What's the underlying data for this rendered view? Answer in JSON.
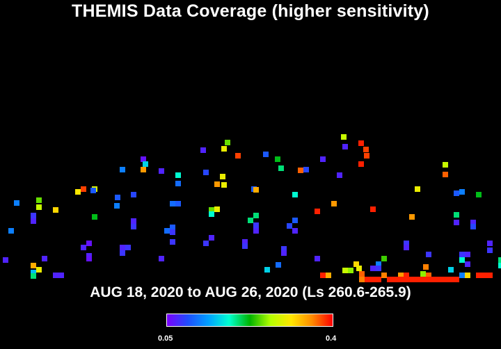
{
  "chart_data": {
    "type": "heatmap",
    "title": "THEMIS Data Coverage (higher sensitivity)",
    "subtitle": "AUG 18, 2020 to AUG 26, 2020 (Ls 260.6-265.9)",
    "colorbar": {
      "min_label": "0.05",
      "max_label": "0.4",
      "min": 0.05,
      "max": 0.4,
      "colors": [
        "#7a00ff",
        "#1f4dff",
        "#00a0ff",
        "#00ffd0",
        "#00b400",
        "#b4ff00",
        "#ffe600",
        "#ff8c00",
        "#ff0000"
      ]
    },
    "cells": [
      [
        202,
        225,
        0.06
      ],
      [
        288,
        212,
        0.07
      ],
      [
        323,
        201,
        0.25
      ],
      [
        318,
        210,
        0.3
      ],
      [
        338,
        220,
        0.38
      ],
      [
        378,
        218,
        0.1
      ],
      [
        395,
        225,
        0.22
      ],
      [
        400,
        238,
        0.2
      ],
      [
        460,
        225,
        0.07
      ],
      [
        490,
        193,
        0.28
      ],
      [
        492,
        207,
        0.07
      ],
      [
        515,
        202,
        0.39
      ],
      [
        522,
        211,
        0.38
      ],
      [
        523,
        220,
        0.38
      ],
      [
        515,
        232,
        0.39
      ],
      [
        172,
        240,
        0.12
      ],
      [
        202,
        240,
        0.35
      ],
      [
        205,
        232,
        0.16
      ],
      [
        228,
        242,
        0.07
      ],
      [
        252,
        248,
        0.18
      ],
      [
        292,
        244,
        0.09
      ],
      [
        316,
        250,
        0.3
      ],
      [
        308,
        261,
        0.35
      ],
      [
        318,
        262,
        0.3
      ],
      [
        428,
        241,
        0.37
      ],
      [
        436,
        240,
        0.09
      ],
      [
        484,
        248,
        0.07
      ],
      [
        636,
        233,
        0.28
      ],
      [
        636,
        247,
        0.37
      ],
      [
        108,
        272,
        0.31
      ],
      [
        116,
        268,
        0.38
      ],
      [
        132,
        268,
        0.29
      ],
      [
        130,
        270,
        0.1
      ],
      [
        165,
        280,
        0.1
      ],
      [
        188,
        276,
        0.09
      ],
      [
        252,
        260,
        0.11
      ],
      [
        361,
        268,
        0.1
      ],
      [
        364,
        269,
        0.34
      ],
      [
        420,
        276,
        0.18
      ],
      [
        476,
        289,
        0.35
      ],
      [
        596,
        268,
        0.3
      ],
      [
        652,
        274,
        0.1
      ],
      [
        660,
        272,
        0.12
      ],
      [
        684,
        276,
        0.22
      ],
      [
        20,
        288,
        0.12
      ],
      [
        52,
        284,
        0.25
      ],
      [
        52,
        294,
        0.28
      ],
      [
        76,
        298,
        0.32
      ],
      [
        164,
        292,
        0.12
      ],
      [
        244,
        289,
        0.11
      ],
      [
        252,
        289,
        0.1
      ],
      [
        300,
        298,
        0.25
      ],
      [
        308,
        297,
        0.3
      ],
      [
        300,
        304,
        0.18
      ],
      [
        452,
        300,
        0.39
      ],
      [
        532,
        297,
        0.39
      ],
      [
        44,
        306,
        0.08
      ],
      [
        44,
        314,
        0.07
      ],
      [
        132,
        308,
        0.22
      ],
      [
        188,
        314,
        0.07
      ],
      [
        188,
        322,
        0.08
      ],
      [
        244,
        323,
        0.1
      ],
      [
        244,
        330,
        0.08
      ],
      [
        236,
        328,
        0.11
      ],
      [
        356,
        313,
        0.2
      ],
      [
        364,
        306,
        0.2
      ],
      [
        364,
        320,
        0.08
      ],
      [
        364,
        328,
        0.07
      ],
      [
        412,
        321,
        0.09
      ],
      [
        420,
        313,
        0.1
      ],
      [
        420,
        328,
        0.07
      ],
      [
        588,
        308,
        0.35
      ],
      [
        652,
        305,
        0.2
      ],
      [
        652,
        316,
        0.07
      ],
      [
        676,
        316,
        0.07
      ],
      [
        676,
        322,
        0.09
      ],
      [
        12,
        328,
        0.12
      ],
      [
        124,
        346,
        0.06
      ],
      [
        116,
        352,
        0.07
      ],
      [
        172,
        352,
        0.07
      ],
      [
        180,
        352,
        0.08
      ],
      [
        172,
        360,
        0.08
      ],
      [
        124,
        364,
        0.07
      ],
      [
        124,
        368,
        0.06
      ],
      [
        244,
        344,
        0.08
      ],
      [
        292,
        346,
        0.08
      ],
      [
        300,
        338,
        0.07
      ],
      [
        348,
        344,
        0.07
      ],
      [
        348,
        350,
        0.08
      ],
      [
        404,
        354,
        0.08
      ],
      [
        404,
        360,
        0.07
      ],
      [
        452,
        368,
        0.07
      ],
      [
        580,
        346,
        0.08
      ],
      [
        580,
        352,
        0.07
      ],
      [
        612,
        362,
        0.08
      ],
      [
        700,
        346,
        0.07
      ],
      [
        700,
        356,
        0.08
      ],
      [
        4,
        370,
        0.07
      ],
      [
        60,
        368,
        0.07
      ],
      [
        44,
        378,
        0.34
      ],
      [
        52,
        384,
        0.3
      ],
      [
        44,
        388,
        0.15
      ],
      [
        44,
        393,
        0.2
      ],
      [
        76,
        392,
        0.07
      ],
      [
        84,
        392,
        0.07
      ],
      [
        228,
        368,
        0.07
      ],
      [
        380,
        384,
        0.16
      ],
      [
        396,
        377,
        0.11
      ],
      [
        548,
        368,
        0.24
      ],
      [
        540,
        376,
        0.12
      ],
      [
        532,
        382,
        0.07
      ],
      [
        540,
        382,
        0.08
      ],
      [
        508,
        376,
        0.32
      ],
      [
        512,
        382,
        0.3
      ],
      [
        500,
        385,
        0.26
      ],
      [
        492,
        385,
        0.28
      ],
      [
        516,
        390,
        0.37
      ],
      [
        660,
        362,
        0.08
      ],
      [
        668,
        362,
        0.07
      ],
      [
        660,
        370,
        0.18
      ],
      [
        668,
        376,
        0.07
      ],
      [
        644,
        384,
        0.16
      ],
      [
        716,
        370,
        0.2
      ],
      [
        716,
        378,
        0.18
      ],
      [
        608,
        380,
        0.36
      ],
      [
        604,
        390,
        0.26
      ],
      [
        612,
        392,
        0.37
      ],
      [
        460,
        392,
        0.39
      ],
      [
        468,
        392,
        0.34
      ],
      [
        516,
        398,
        0.36
      ],
      [
        548,
        392,
        0.36
      ],
      [
        572,
        392,
        0.35
      ],
      [
        580,
        392,
        0.39
      ],
      [
        660,
        392,
        0.12
      ],
      [
        668,
        392,
        0.32
      ],
      [
        684,
        392,
        0.39
      ],
      [
        692,
        392,
        0.39
      ],
      [
        700,
        392,
        0.39
      ],
      [
        524,
        398,
        0.39
      ],
      [
        532,
        398,
        0.39
      ],
      [
        540,
        398,
        0.39
      ],
      [
        556,
        398,
        0.39
      ],
      [
        564,
        398,
        0.39
      ],
      [
        572,
        398,
        0.39
      ],
      [
        580,
        398,
        0.39
      ],
      [
        588,
        398,
        0.39
      ],
      [
        596,
        398,
        0.39
      ],
      [
        604,
        398,
        0.39
      ],
      [
        612,
        398,
        0.39
      ],
      [
        620,
        398,
        0.39
      ],
      [
        628,
        398,
        0.39
      ],
      [
        636,
        398,
        0.39
      ],
      [
        644,
        398,
        0.39
      ],
      [
        652,
        398,
        0.39
      ]
    ]
  }
}
